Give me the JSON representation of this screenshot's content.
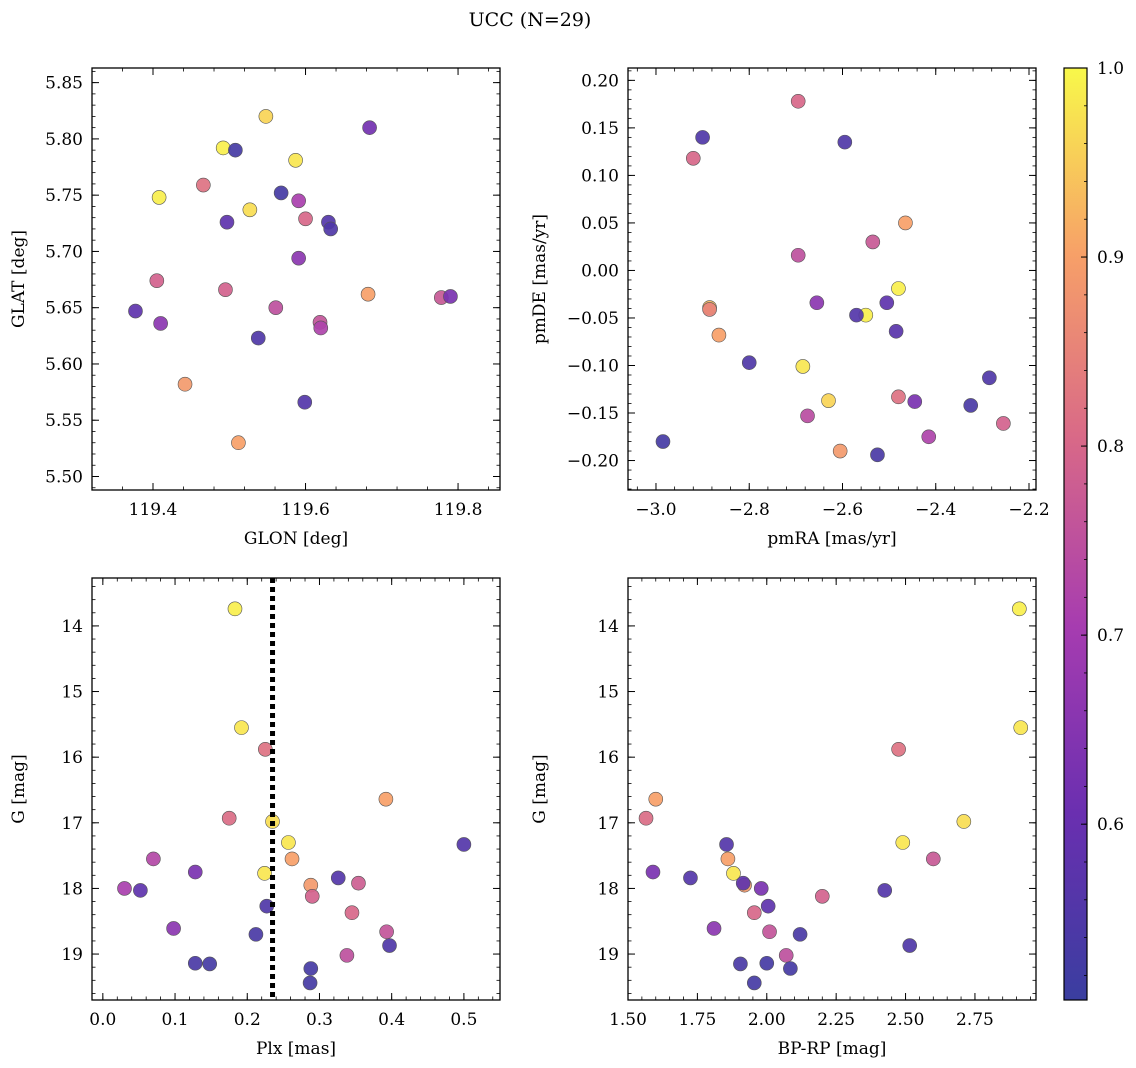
{
  "figure": {
    "title": "UCC (N=29)",
    "colorbar": {
      "ticks": [
        "1.0",
        "0.9",
        "0.8",
        "0.7",
        "0.6"
      ],
      "tick_values": [
        1.0,
        0.9,
        0.8,
        0.7,
        0.6
      ],
      "range": [
        0.507,
        1.0
      ],
      "colormap": "plasma"
    },
    "marker_edge_color": "#555555",
    "guide_line_color": "#000000"
  },
  "chart_data": [
    {
      "type": "scatter",
      "id": "glon-glat",
      "xlabel": "GLON [deg]",
      "ylabel": "GLAT [deg]",
      "xlim": [
        119.32,
        119.855
      ],
      "ylim": [
        5.488,
        5.863
      ],
      "xticks": [
        119.4,
        119.6,
        119.8
      ],
      "xticklabels": [
        "119.4",
        "119.6",
        "119.8"
      ],
      "yticks": [
        5.5,
        5.55,
        5.6,
        5.65,
        5.7,
        5.75,
        5.8,
        5.85
      ],
      "yticklabels": [
        "5.50",
        "5.55",
        "5.60",
        "5.65",
        "5.70",
        "5.75",
        "5.80",
        "5.85"
      ],
      "y_inverted": false,
      "points": [
        {
          "x": 119.492,
          "y": 5.792,
          "c": 0.99
        },
        {
          "x": 119.548,
          "y": 5.82,
          "c": 0.96
        },
        {
          "x": 119.587,
          "y": 5.781,
          "c": 0.98
        },
        {
          "x": 119.408,
          "y": 5.748,
          "c": 0.99
        },
        {
          "x": 119.527,
          "y": 5.737,
          "c": 0.97
        },
        {
          "x": 119.442,
          "y": 5.582,
          "c": 0.89
        },
        {
          "x": 119.512,
          "y": 5.53,
          "c": 0.9
        },
        {
          "x": 119.682,
          "y": 5.662,
          "c": 0.9
        },
        {
          "x": 119.466,
          "y": 5.759,
          "c": 0.82
        },
        {
          "x": 119.6,
          "y": 5.729,
          "c": 0.8
        },
        {
          "x": 119.405,
          "y": 5.674,
          "c": 0.79
        },
        {
          "x": 119.495,
          "y": 5.666,
          "c": 0.79
        },
        {
          "x": 119.778,
          "y": 5.659,
          "c": 0.77
        },
        {
          "x": 119.619,
          "y": 5.637,
          "c": 0.76
        },
        {
          "x": 119.561,
          "y": 5.65,
          "c": 0.75
        },
        {
          "x": 119.62,
          "y": 5.632,
          "c": 0.72
        },
        {
          "x": 119.591,
          "y": 5.745,
          "c": 0.71
        },
        {
          "x": 119.591,
          "y": 5.694,
          "c": 0.66
        },
        {
          "x": 119.41,
          "y": 5.636,
          "c": 0.66
        },
        {
          "x": 119.684,
          "y": 5.81,
          "c": 0.62
        },
        {
          "x": 119.79,
          "y": 5.66,
          "c": 0.63
        },
        {
          "x": 119.497,
          "y": 5.726,
          "c": 0.58
        },
        {
          "x": 119.377,
          "y": 5.647,
          "c": 0.58
        },
        {
          "x": 119.63,
          "y": 5.726,
          "c": 0.56
        },
        {
          "x": 119.633,
          "y": 5.72,
          "c": 0.55
        },
        {
          "x": 119.599,
          "y": 5.566,
          "c": 0.56
        },
        {
          "x": 119.538,
          "y": 5.623,
          "c": 0.55
        },
        {
          "x": 119.508,
          "y": 5.79,
          "c": 0.53
        },
        {
          "x": 119.568,
          "y": 5.752,
          "c": 0.53
        }
      ]
    },
    {
      "type": "scatter",
      "id": "pmra-pmde",
      "xlabel": "pmRA [mas/yr]",
      "ylabel": "pmDE [mas/yr]",
      "xlim": [
        -3.06,
        -2.185
      ],
      "ylim": [
        -0.231,
        0.213
      ],
      "xticks": [
        -3.0,
        -2.8,
        -2.6,
        -2.4,
        -2.2
      ],
      "xticklabels": [
        "−3.0",
        "−2.8",
        "−2.6",
        "−2.4",
        "−2.2"
      ],
      "yticks": [
        -0.2,
        -0.15,
        -0.1,
        -0.05,
        0.0,
        0.05,
        0.1,
        0.15,
        0.2
      ],
      "yticklabels": [
        "−0.20",
        "−0.15",
        "−0.10",
        "−0.05",
        "0.00",
        "0.05",
        "0.10",
        "0.15",
        "0.20"
      ],
      "y_inverted": false,
      "points": [
        {
          "x": -2.55,
          "y": -0.047,
          "c": 0.99
        },
        {
          "x": -2.48,
          "y": -0.019,
          "c": 0.99
        },
        {
          "x": -2.685,
          "y": -0.101,
          "c": 0.98
        },
        {
          "x": -2.63,
          "y": -0.137,
          "c": 0.96
        },
        {
          "x": -2.885,
          "y": -0.039,
          "c": 0.93
        },
        {
          "x": -2.865,
          "y": -0.068,
          "c": 0.9
        },
        {
          "x": -2.465,
          "y": 0.05,
          "c": 0.9
        },
        {
          "x": -2.605,
          "y": -0.19,
          "c": 0.89
        },
        {
          "x": -2.885,
          "y": -0.041,
          "c": 0.85
        },
        {
          "x": -2.48,
          "y": -0.133,
          "c": 0.82
        },
        {
          "x": -2.695,
          "y": 0.178,
          "c": 0.8
        },
        {
          "x": -2.92,
          "y": 0.118,
          "c": 0.8
        },
        {
          "x": -2.255,
          "y": -0.161,
          "c": 0.79
        },
        {
          "x": -2.535,
          "y": 0.03,
          "c": 0.77
        },
        {
          "x": -2.695,
          "y": 0.016,
          "c": 0.75
        },
        {
          "x": -2.675,
          "y": -0.153,
          "c": 0.74
        },
        {
          "x": -2.415,
          "y": -0.175,
          "c": 0.72
        },
        {
          "x": -2.655,
          "y": -0.034,
          "c": 0.66
        },
        {
          "x": -2.445,
          "y": -0.138,
          "c": 0.63
        },
        {
          "x": -2.505,
          "y": -0.034,
          "c": 0.58
        },
        {
          "x": -2.485,
          "y": -0.064,
          "c": 0.57
        },
        {
          "x": -2.57,
          "y": -0.047,
          "c": 0.56
        },
        {
          "x": -2.285,
          "y": -0.113,
          "c": 0.55
        },
        {
          "x": -2.9,
          "y": 0.14,
          "c": 0.55
        },
        {
          "x": -2.595,
          "y": 0.135,
          "c": 0.55
        },
        {
          "x": -2.8,
          "y": -0.097,
          "c": 0.55
        },
        {
          "x": -2.325,
          "y": -0.142,
          "c": 0.54
        },
        {
          "x": -2.525,
          "y": -0.194,
          "c": 0.54
        },
        {
          "x": -2.985,
          "y": -0.18,
          "c": 0.53
        }
      ]
    },
    {
      "type": "scatter",
      "id": "plx-g",
      "xlabel": "Plx [mas]",
      "ylabel": "G [mag]",
      "xlim": [
        -0.015,
        0.55
      ],
      "ylim": [
        19.7,
        13.27
      ],
      "xticks": [
        0.0,
        0.1,
        0.2,
        0.3,
        0.4,
        0.5
      ],
      "xticklabels": [
        "0.0",
        "0.1",
        "0.2",
        "0.3",
        "0.4",
        "0.5"
      ],
      "yticks": [
        14,
        15,
        16,
        17,
        18,
        19
      ],
      "yticklabels": [
        "14",
        "15",
        "16",
        "17",
        "18",
        "19"
      ],
      "y_inverted": true,
      "vline_x": 0.235,
      "points": [
        {
          "x": 0.183,
          "y": 13.74,
          "c": 0.99
        },
        {
          "x": 0.192,
          "y": 15.55,
          "c": 0.98
        },
        {
          "x": 0.235,
          "y": 16.98,
          "c": 0.97
        },
        {
          "x": 0.257,
          "y": 17.3,
          "c": 0.98
        },
        {
          "x": 0.224,
          "y": 17.77,
          "c": 0.98
        },
        {
          "x": 0.392,
          "y": 16.64,
          "c": 0.9
        },
        {
          "x": 0.262,
          "y": 17.55,
          "c": 0.9
        },
        {
          "x": 0.288,
          "y": 17.95,
          "c": 0.89
        },
        {
          "x": 0.225,
          "y": 15.88,
          "c": 0.82
        },
        {
          "x": 0.175,
          "y": 16.93,
          "c": 0.81
        },
        {
          "x": 0.345,
          "y": 18.37,
          "c": 0.8
        },
        {
          "x": 0.29,
          "y": 18.12,
          "c": 0.79
        },
        {
          "x": 0.354,
          "y": 17.92,
          "c": 0.78
        },
        {
          "x": 0.393,
          "y": 18.66,
          "c": 0.76
        },
        {
          "x": 0.338,
          "y": 19.02,
          "c": 0.75
        },
        {
          "x": 0.07,
          "y": 17.55,
          "c": 0.73
        },
        {
          "x": 0.03,
          "y": 18.0,
          "c": 0.71
        },
        {
          "x": 0.098,
          "y": 18.61,
          "c": 0.66
        },
        {
          "x": 0.128,
          "y": 17.75,
          "c": 0.63
        },
        {
          "x": 0.052,
          "y": 18.03,
          "c": 0.58
        },
        {
          "x": 0.5,
          "y": 17.33,
          "c": 0.56
        },
        {
          "x": 0.326,
          "y": 17.84,
          "c": 0.56
        },
        {
          "x": 0.397,
          "y": 18.87,
          "c": 0.55
        },
        {
          "x": 0.227,
          "y": 18.27,
          "c": 0.55
        },
        {
          "x": 0.212,
          "y": 18.7,
          "c": 0.54
        },
        {
          "x": 0.128,
          "y": 19.14,
          "c": 0.54
        },
        {
          "x": 0.148,
          "y": 19.15,
          "c": 0.53
        },
        {
          "x": 0.288,
          "y": 19.22,
          "c": 0.53
        },
        {
          "x": 0.287,
          "y": 19.44,
          "c": 0.53
        }
      ]
    },
    {
      "type": "scatter",
      "id": "bprp-g",
      "xlabel": "BP-RP [mag]",
      "ylabel": "G [mag]",
      "xlim": [
        1.5,
        2.97
      ],
      "ylim": [
        19.7,
        13.27
      ],
      "xticks": [
        1.5,
        1.75,
        2.0,
        2.25,
        2.5,
        2.75
      ],
      "xticklabels": [
        "1.50",
        "1.75",
        "2.00",
        "2.25",
        "2.50",
        "2.75"
      ],
      "yticks": [
        14,
        15,
        16,
        17,
        18,
        19
      ],
      "yticklabels": [
        "14",
        "15",
        "16",
        "17",
        "18",
        "19"
      ],
      "y_inverted": true,
      "points": [
        {
          "x": 2.91,
          "y": 13.74,
          "c": 0.99
        },
        {
          "x": 2.915,
          "y": 15.55,
          "c": 0.98
        },
        {
          "x": 2.71,
          "y": 16.98,
          "c": 0.97
        },
        {
          "x": 2.49,
          "y": 17.3,
          "c": 0.98
        },
        {
          "x": 1.88,
          "y": 17.77,
          "c": 0.98
        },
        {
          "x": 1.6,
          "y": 16.64,
          "c": 0.9
        },
        {
          "x": 1.86,
          "y": 17.55,
          "c": 0.9
        },
        {
          "x": 1.92,
          "y": 17.95,
          "c": 0.89
        },
        {
          "x": 2.475,
          "y": 15.88,
          "c": 0.82
        },
        {
          "x": 1.565,
          "y": 16.93,
          "c": 0.81
        },
        {
          "x": 1.955,
          "y": 18.37,
          "c": 0.8
        },
        {
          "x": 2.2,
          "y": 18.12,
          "c": 0.79
        },
        {
          "x": 2.6,
          "y": 17.55,
          "c": 0.77
        },
        {
          "x": 2.01,
          "y": 18.66,
          "c": 0.76
        },
        {
          "x": 2.07,
          "y": 19.02,
          "c": 0.75
        },
        {
          "x": 1.81,
          "y": 18.61,
          "c": 0.66
        },
        {
          "x": 1.59,
          "y": 17.75,
          "c": 0.63
        },
        {
          "x": 1.98,
          "y": 18.0,
          "c": 0.63
        },
        {
          "x": 1.915,
          "y": 17.92,
          "c": 0.58
        },
        {
          "x": 2.005,
          "y": 18.27,
          "c": 0.58
        },
        {
          "x": 1.725,
          "y": 17.84,
          "c": 0.56
        },
        {
          "x": 1.855,
          "y": 17.33,
          "c": 0.56
        },
        {
          "x": 2.425,
          "y": 18.03,
          "c": 0.56
        },
        {
          "x": 2.515,
          "y": 18.87,
          "c": 0.55
        },
        {
          "x": 2.12,
          "y": 18.7,
          "c": 0.54
        },
        {
          "x": 1.905,
          "y": 19.15,
          "c": 0.54
        },
        {
          "x": 2.0,
          "y": 19.14,
          "c": 0.53
        },
        {
          "x": 2.085,
          "y": 19.22,
          "c": 0.53
        },
        {
          "x": 1.955,
          "y": 19.44,
          "c": 0.53
        }
      ]
    }
  ]
}
